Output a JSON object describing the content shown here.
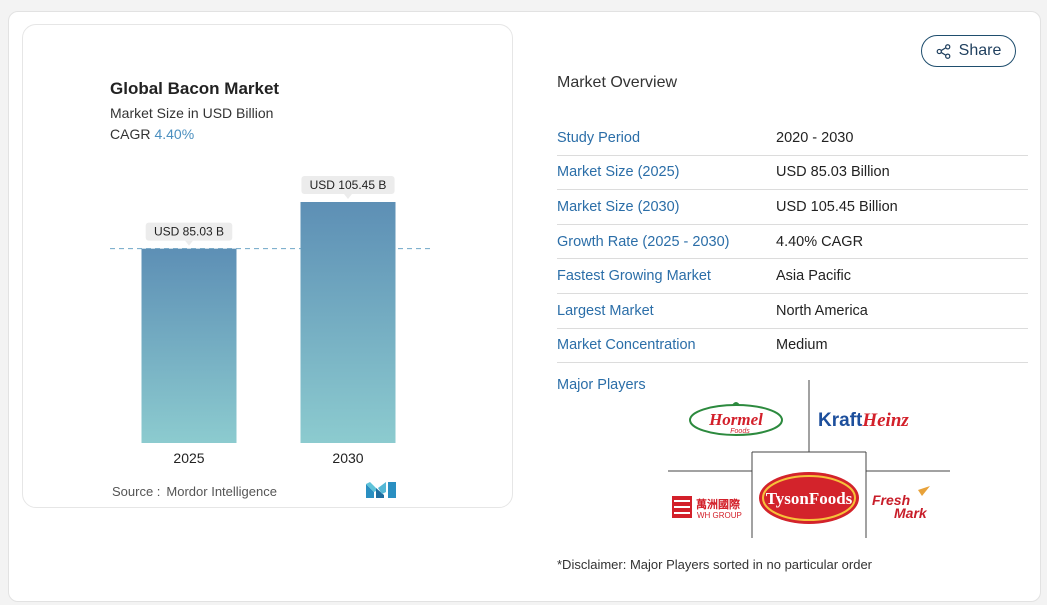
{
  "chart_card": {
    "title": "Global Bacon Market",
    "subtitle": "Market Size in USD Billion",
    "cagr_label": "CAGR",
    "cagr_value": "4.40%",
    "source_label": "Source :",
    "source_name": "Mordor Intelligence",
    "logo_name": "mordor-intelligence-logo"
  },
  "chart_data": {
    "type": "bar",
    "categories": [
      "2025",
      "2030"
    ],
    "values": [
      85.03,
      105.45
    ],
    "data_labels": [
      "USD 85.03 B",
      "USD 105.45 B"
    ],
    "title": "Global Bacon Market",
    "xlabel": "",
    "ylabel": "Market Size in USD Billion",
    "ylim": [
      0,
      105.45
    ],
    "grid": false,
    "colors": {
      "bar_top": "#5d8fb5",
      "bar_bottom": "#8ccbcf",
      "reference_line": "#6fa6c7"
    }
  },
  "share": {
    "label": "Share",
    "icon": "share-icon"
  },
  "overview": {
    "title": "Market Overview",
    "rows": [
      {
        "label": "Study Period",
        "value": "2020 - 2030"
      },
      {
        "label": "Market Size (2025)",
        "value": "USD 85.03 Billion"
      },
      {
        "label": "Market Size (2030)",
        "value": "USD 105.45 Billion"
      },
      {
        "label": "Growth Rate (2025 - 2030)",
        "value": "4.40% CAGR"
      },
      {
        "label": "Fastest Growing Market",
        "value": "Asia Pacific"
      },
      {
        "label": "Largest Market",
        "value": "North America"
      },
      {
        "label": "Market Concentration",
        "value": "Medium"
      }
    ]
  },
  "players": {
    "title": "Major Players",
    "logos": {
      "hormel": {
        "main": "Hormel",
        "sub": "Foods"
      },
      "kraft": {
        "a": "Kraft",
        "b": "Heinz"
      },
      "wh": {
        "cn": "萬洲國際",
        "en": "WH GROUP"
      },
      "tyson": {
        "text": "TysonFoods"
      },
      "freshmark": {
        "a": "Fresh",
        "b": "Mark"
      }
    }
  },
  "disclaimer": "*Disclaimer: Major Players sorted in no particular order",
  "colors": {
    "accent": "#2b6ea8",
    "share_border": "#1f4e6e",
    "tyson_red": "#d3232b",
    "hormel_red": "#d31f2a",
    "kraft_blue": "#1d4f9c",
    "kraft_red": "#d3202a"
  }
}
